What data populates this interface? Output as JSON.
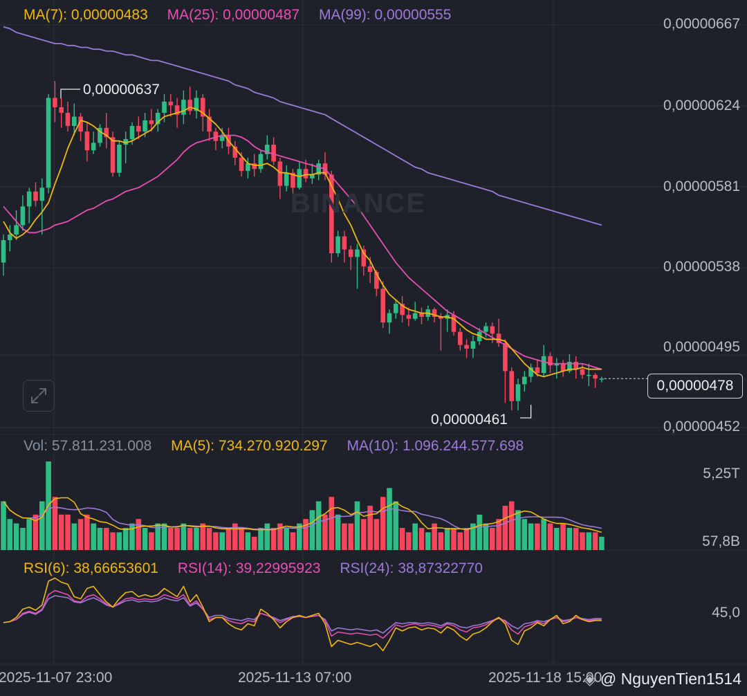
{
  "chart_data": {
    "type": "candlestick",
    "price_legend": {
      "ma7": "MA(7): 0,00000483",
      "ma25": "MA(25): 0,00000487",
      "ma99": "MA(99): 0,00000555"
    },
    "price_axis_labels": [
      "0,00000667",
      "0,00000624",
      "0,00000581",
      "0,00000538",
      "0,00000495",
      "0,00000452"
    ],
    "price_axis_values": [
      6.67e-06,
      6.24e-06,
      5.81e-06,
      5.38e-06,
      4.95e-06,
      4.52e-06
    ],
    "current_price": "0,00000478",
    "high_annotation": "0,00000637",
    "low_annotation": "0,00000461",
    "watermark": "BINANCE",
    "volume_legend": {
      "vol": "Vol: 57.811.231.008",
      "ma5": "MA(5): 734.270.920.297",
      "ma10": "MA(10): 1.096.244.577.698"
    },
    "volume_axis_labels": [
      "5,25T",
      "57,8B"
    ],
    "rsi_legend": {
      "rsi6": "RSI(6): 38,66653601",
      "rsi14": "RSI(14): 39,22995923",
      "rsi24": "RSI(24): 38,87322770"
    },
    "rsi_axis_labels": [
      "45,0"
    ],
    "x_labels": [
      "2025-11-07 23:00",
      "2025-11-13 07:00",
      "2025-11-18 15:00"
    ],
    "credit": "@ NguyenTien1514",
    "candles": [
      [
        5.4,
        5.52,
        5.55,
        5.33
      ],
      [
        5.52,
        5.55,
        5.6,
        5.46
      ],
      [
        5.55,
        5.6,
        5.68,
        5.52
      ],
      [
        5.6,
        5.7,
        5.76,
        5.57
      ],
      [
        5.7,
        5.78,
        5.8,
        5.61
      ],
      [
        5.78,
        5.73,
        5.83,
        5.7
      ],
      [
        5.73,
        5.8,
        5.85,
        5.55
      ],
      [
        5.8,
        6.28,
        6.3,
        5.77
      ],
      [
        6.28,
        6.23,
        6.37,
        6.15
      ],
      [
        6.23,
        6.2,
        6.28,
        6.12
      ],
      [
        6.2,
        6.13,
        6.26,
        6.1
      ],
      [
        6.13,
        6.18,
        6.25,
        6.08
      ],
      [
        6.18,
        6.1,
        6.2,
        6.05
      ],
      [
        6.1,
        6.0,
        6.15,
        5.94
      ],
      [
        6.0,
        6.04,
        6.1,
        5.98
      ],
      [
        6.04,
        6.12,
        6.14,
        6.02
      ],
      [
        6.12,
        6.07,
        6.2,
        6.01
      ],
      [
        6.07,
        5.88,
        6.1,
        5.86
      ],
      [
        5.88,
        6.03,
        6.05,
        5.86
      ],
      [
        6.03,
        6.06,
        6.1,
        5.93
      ],
      [
        6.06,
        6.13,
        6.15,
        6.03
      ],
      [
        6.13,
        6.1,
        6.18,
        6.06
      ],
      [
        6.1,
        6.16,
        6.2,
        6.07
      ],
      [
        6.16,
        6.14,
        6.22,
        6.1
      ],
      [
        6.14,
        6.2,
        6.22,
        6.1
      ],
      [
        6.2,
        6.26,
        6.3,
        6.15
      ],
      [
        6.26,
        6.24,
        6.3,
        6.18
      ],
      [
        6.24,
        6.19,
        6.28,
        6.12
      ],
      [
        6.19,
        6.27,
        6.32,
        6.14
      ],
      [
        6.27,
        6.21,
        6.34,
        6.19
      ],
      [
        6.21,
        6.28,
        6.32,
        6.17
      ],
      [
        6.28,
        6.18,
        6.3,
        6.1
      ],
      [
        6.18,
        6.1,
        6.22,
        6.05
      ],
      [
        6.1,
        6.05,
        6.12,
        6.0
      ],
      [
        6.05,
        6.08,
        6.12,
        6.01
      ],
      [
        6.08,
        6.02,
        6.12,
        5.98
      ],
      [
        6.02,
        5.96,
        6.05,
        5.92
      ],
      [
        5.96,
        5.89,
        5.99,
        5.86
      ],
      [
        5.89,
        5.93,
        5.96,
        5.85
      ],
      [
        5.93,
        5.9,
        5.98,
        5.86
      ],
      [
        5.9,
        5.98,
        6.0,
        5.88
      ],
      [
        5.98,
        6.03,
        6.08,
        5.95
      ],
      [
        6.03,
        5.94,
        6.07,
        5.92
      ],
      [
        5.94,
        5.81,
        5.96,
        5.74
      ],
      [
        5.81,
        5.88,
        5.92,
        5.78
      ],
      [
        5.88,
        5.8,
        5.9,
        5.77
      ],
      [
        5.8,
        5.9,
        5.94,
        5.79
      ],
      [
        5.9,
        5.85,
        5.95,
        5.83
      ],
      [
        5.85,
        5.87,
        5.93,
        5.82
      ],
      [
        5.87,
        5.93,
        5.95,
        5.84
      ],
      [
        5.93,
        5.87,
        5.99,
        5.84
      ],
      [
        5.87,
        5.45,
        5.89,
        5.4
      ],
      [
        5.45,
        5.54,
        5.57,
        5.43
      ],
      [
        5.54,
        5.47,
        5.57,
        5.4
      ],
      [
        5.47,
        5.43,
        5.49,
        5.36
      ],
      [
        5.43,
        5.47,
        5.5,
        5.26
      ],
      [
        5.47,
        5.38,
        5.49,
        5.33
      ],
      [
        5.38,
        5.35,
        5.43,
        5.29
      ],
      [
        5.35,
        5.26,
        5.36,
        5.22
      ],
      [
        5.26,
        5.08,
        5.3,
        5.05
      ],
      [
        5.08,
        5.13,
        5.15,
        5.02
      ],
      [
        5.13,
        5.18,
        5.2,
        5.1
      ],
      [
        5.18,
        5.12,
        5.22,
        5.08
      ],
      [
        5.12,
        5.1,
        5.16,
        5.06
      ],
      [
        5.1,
        5.13,
        5.19,
        5.09
      ],
      [
        5.13,
        5.11,
        5.16,
        5.07
      ],
      [
        5.11,
        5.15,
        5.17,
        5.09
      ],
      [
        5.15,
        5.11,
        5.16,
        5.08
      ],
      [
        5.11,
        5.1,
        5.13,
        4.93
      ],
      [
        5.1,
        5.12,
        5.15,
        5.03
      ],
      [
        5.12,
        5.03,
        5.14,
        5.01
      ],
      [
        5.03,
        4.96,
        5.05,
        4.93
      ],
      [
        4.96,
        4.94,
        4.99,
        4.89
      ],
      [
        4.94,
        4.98,
        5.01,
        4.89
      ],
      [
        4.98,
        5.03,
        5.05,
        4.96
      ],
      [
        5.03,
        5.06,
        5.08,
        5.0
      ],
      [
        5.06,
        5.02,
        5.08,
        4.97
      ],
      [
        5.02,
        4.97,
        5.1,
        4.95
      ],
      [
        4.97,
        4.82,
        4.99,
        4.65
      ],
      [
        4.82,
        4.66,
        4.84,
        4.61
      ],
      [
        4.66,
        4.75,
        4.78,
        4.61
      ],
      [
        4.75,
        4.79,
        4.82,
        4.71
      ],
      [
        4.79,
        4.84,
        4.86,
        4.76
      ],
      [
        4.84,
        4.81,
        4.88,
        4.79
      ],
      [
        4.81,
        4.9,
        4.96,
        4.79
      ],
      [
        4.9,
        4.85,
        4.92,
        4.81
      ],
      [
        4.85,
        4.86,
        4.89,
        4.78
      ],
      [
        4.86,
        4.82,
        4.88,
        4.79
      ],
      [
        4.82,
        4.87,
        4.91,
        4.81
      ],
      [
        4.87,
        4.83,
        4.9,
        4.78
      ],
      [
        4.83,
        4.8,
        4.86,
        4.78
      ],
      [
        4.8,
        4.8,
        4.86,
        4.74
      ],
      [
        4.8,
        4.78,
        4.81,
        4.73
      ],
      [
        4.78,
        4.78,
        4.79,
        4.76
      ]
    ],
    "ma7": [
      5.62,
      5.56,
      5.53,
      5.55,
      5.58,
      5.63,
      5.67,
      5.72,
      5.82,
      5.91,
      6.01,
      6.09,
      6.16,
      6.15,
      6.13,
      6.1,
      6.08,
      6.05,
      6.05,
      6.04,
      6.05,
      6.07,
      6.09,
      6.11,
      6.15,
      6.18,
      6.19,
      6.2,
      6.21,
      6.23,
      6.22,
      6.2,
      6.17,
      6.14,
      6.1,
      6.05,
      6.01,
      5.97,
      5.93,
      5.92,
      5.92,
      5.93,
      5.91,
      5.88,
      5.88,
      5.87,
      5.86,
      5.87,
      5.87,
      5.88,
      5.88,
      5.81,
      5.74,
      5.66,
      5.6,
      5.52,
      5.45,
      5.41,
      5.34,
      5.28,
      5.23,
      5.2,
      5.17,
      5.15,
      5.14,
      5.13,
      5.13,
      5.12,
      5.11,
      5.11,
      5.1,
      5.07,
      5.04,
      5.02,
      5.01,
      4.99,
      4.99,
      4.99,
      4.98,
      4.94,
      4.9,
      4.86,
      4.83,
      4.8,
      4.79,
      4.8,
      4.81,
      4.82,
      4.83,
      4.83,
      4.84,
      4.83,
      4.83,
      4.83
    ],
    "ma25": [
      5.7,
      5.66,
      5.62,
      5.58,
      5.56,
      5.56,
      5.57,
      5.58,
      5.6,
      5.61,
      5.62,
      5.64,
      5.66,
      5.68,
      5.69,
      5.71,
      5.73,
      5.74,
      5.76,
      5.78,
      5.79,
      5.8,
      5.82,
      5.84,
      5.86,
      5.89,
      5.92,
      5.95,
      5.99,
      6.02,
      6.04,
      6.05,
      6.06,
      6.07,
      6.08,
      6.08,
      6.08,
      6.07,
      6.05,
      6.02,
      6.0,
      5.99,
      5.98,
      5.97,
      5.96,
      5.95,
      5.94,
      5.93,
      5.92,
      5.91,
      5.9,
      5.86,
      5.82,
      5.78,
      5.74,
      5.7,
      5.65,
      5.6,
      5.55,
      5.5,
      5.45,
      5.4,
      5.36,
      5.32,
      5.29,
      5.26,
      5.23,
      5.2,
      5.17,
      5.14,
      5.12,
      5.1,
      5.08,
      5.06,
      5.04,
      5.02,
      5.0,
      4.98,
      4.96,
      4.94,
      4.92,
      4.9,
      4.89,
      4.88,
      4.87,
      4.86,
      4.86,
      4.86,
      4.86,
      4.86,
      4.86,
      4.85,
      4.84,
      4.83
    ],
    "ma99": [
      6.66,
      6.65,
      6.63,
      6.62,
      6.61,
      6.6,
      6.59,
      6.58,
      6.57,
      6.57,
      6.56,
      6.56,
      6.55,
      6.55,
      6.54,
      6.54,
      6.53,
      6.53,
      6.52,
      6.51,
      6.51,
      6.5,
      6.49,
      6.48,
      6.48,
      6.47,
      6.46,
      6.45,
      6.44,
      6.43,
      6.42,
      6.41,
      6.4,
      6.39,
      6.38,
      6.37,
      6.35,
      6.34,
      6.33,
      6.31,
      6.3,
      6.29,
      6.28,
      6.26,
      6.25,
      6.24,
      6.23,
      6.22,
      6.21,
      6.2,
      6.19,
      6.17,
      6.15,
      6.13,
      6.11,
      6.09,
      6.07,
      6.05,
      6.03,
      6.01,
      5.99,
      5.97,
      5.95,
      5.93,
      5.91,
      5.9,
      5.88,
      5.87,
      5.86,
      5.85,
      5.84,
      5.83,
      5.82,
      5.81,
      5.8,
      5.79,
      5.78,
      5.76,
      5.75,
      5.74,
      5.73,
      5.72,
      5.71,
      5.7,
      5.69,
      5.68,
      5.67,
      5.66,
      5.65,
      5.64,
      5.63,
      5.62,
      5.61,
      5.6
    ],
    "volume": [
      0.55,
      0.35,
      0.3,
      0.25,
      0.35,
      0.4,
      0.55,
      1.0,
      0.6,
      0.4,
      0.4,
      0.3,
      0.35,
      0.4,
      0.3,
      0.25,
      0.25,
      0.2,
      0.2,
      0.25,
      0.3,
      0.35,
      0.25,
      0.2,
      0.3,
      0.3,
      0.25,
      0.25,
      0.3,
      0.25,
      0.25,
      0.3,
      0.25,
      0.2,
      0.2,
      0.25,
      0.3,
      0.25,
      0.2,
      0.15,
      0.25,
      0.3,
      0.25,
      0.3,
      0.25,
      0.2,
      0.3,
      0.35,
      0.45,
      0.55,
      0.4,
      0.6,
      0.4,
      0.3,
      0.3,
      0.55,
      0.35,
      0.5,
      0.35,
      0.6,
      0.7,
      0.55,
      0.25,
      0.2,
      0.3,
      0.25,
      0.2,
      0.3,
      0.2,
      0.25,
      0.25,
      0.2,
      0.25,
      0.3,
      0.4,
      0.3,
      0.25,
      0.35,
      0.5,
      0.55,
      0.45,
      0.35,
      0.3,
      0.3,
      0.35,
      0.3,
      0.25,
      0.3,
      0.25,
      0.25,
      0.2,
      0.2,
      0.2,
      0.15
    ],
    "rsi6": [
      35,
      36,
      40,
      48,
      50,
      47,
      52,
      75,
      78,
      74,
      72,
      60,
      58,
      68,
      70,
      62,
      55,
      50,
      58,
      64,
      65,
      60,
      62,
      60,
      62,
      68,
      64,
      60,
      70,
      55,
      62,
      50,
      36,
      40,
      40,
      34,
      30,
      28,
      34,
      32,
      48,
      44,
      38,
      30,
      36,
      40,
      42,
      40,
      42,
      44,
      34,
      12,
      18,
      16,
      14,
      16,
      14,
      12,
      15,
      8,
      18,
      30,
      27,
      30,
      31,
      28,
      30,
      29,
      25,
      31,
      28,
      22,
      18,
      24,
      26,
      30,
      36,
      40,
      34,
      18,
      14,
      27,
      30,
      35,
      32,
      38,
      42,
      34,
      36,
      42,
      38,
      36,
      37,
      37
    ],
    "rsi14": [
      35,
      36,
      38,
      44,
      46,
      44,
      48,
      62,
      66,
      64,
      62,
      56,
      55,
      60,
      62,
      58,
      53,
      50,
      54,
      58,
      59,
      57,
      58,
      57,
      58,
      62,
      60,
      58,
      62,
      52,
      56,
      48,
      38,
      40,
      40,
      37,
      35,
      34,
      37,
      36,
      44,
      42,
      39,
      35,
      38,
      40,
      41,
      40,
      41,
      42,
      37,
      22,
      26,
      25,
      24,
      25,
      24,
      23,
      24,
      20,
      26,
      33,
      31,
      33,
      34,
      32,
      33,
      32,
      30,
      34,
      32,
      28,
      26,
      30,
      31,
      33,
      37,
      40,
      36,
      28,
      24,
      31,
      33,
      36,
      34,
      38,
      40,
      36,
      37,
      40,
      38,
      37,
      38,
      38
    ],
    "rsi24": [
      35,
      36,
      38,
      43,
      45,
      43,
      47,
      58,
      61,
      60,
      59,
      55,
      54,
      57,
      59,
      56,
      52,
      50,
      53,
      56,
      57,
      55,
      56,
      55,
      56,
      59,
      57,
      56,
      59,
      51,
      54,
      48,
      40,
      42,
      42,
      39,
      38,
      37,
      39,
      38,
      44,
      42,
      40,
      37,
      39,
      41,
      41,
      40,
      41,
      42,
      38,
      27,
      30,
      29,
      28,
      29,
      28,
      27,
      28,
      25,
      30,
      35,
      34,
      35,
      35,
      34,
      35,
      34,
      32,
      35,
      34,
      31,
      30,
      32,
      33,
      35,
      37,
      39,
      37,
      32,
      29,
      34,
      35,
      37,
      36,
      38,
      40,
      37,
      38,
      40,
      39,
      38,
      39,
      39
    ]
  },
  "ui": {
    "expand_icon": "expand-arrows-icon",
    "colors": {
      "up": "#2ebd85",
      "down": "#f6465d",
      "ma7": "#f0b90b",
      "ma25": "#e84fb3",
      "ma99": "#9b7bd8",
      "grid": "#2b2f39",
      "background": "#1e2129"
    }
  }
}
